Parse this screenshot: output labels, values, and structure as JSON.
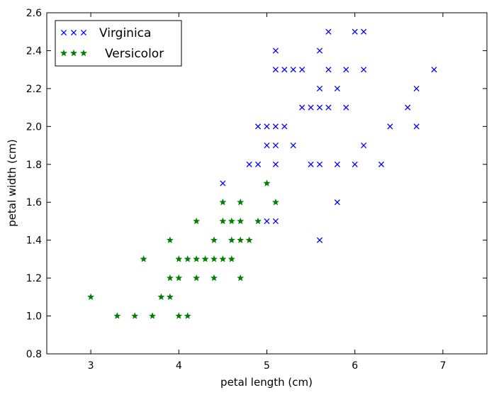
{
  "chart_data": {
    "type": "scatter",
    "xlabel": "petal length (cm)",
    "ylabel": "petal width (cm)",
    "xlim": [
      2.5,
      7.5
    ],
    "ylim": [
      0.8,
      2.6
    ],
    "x_ticks": [
      "3",
      "4",
      "5",
      "6",
      "7"
    ],
    "y_ticks": [
      "0.8",
      "1.0",
      "1.2",
      "1.4",
      "1.6",
      "1.8",
      "2.0",
      "2.2",
      "2.4",
      "2.6"
    ],
    "grid": false,
    "legend_position": "top-left",
    "series": [
      {
        "name": "Virginica",
        "marker": "x",
        "color": "#0000ff",
        "points": [
          [
            5.7,
            2.5
          ],
          [
            6.0,
            2.5
          ],
          [
            6.1,
            2.5
          ],
          [
            5.1,
            2.4
          ],
          [
            5.6,
            2.4
          ],
          [
            5.1,
            2.3
          ],
          [
            5.2,
            2.3
          ],
          [
            5.3,
            2.3
          ],
          [
            5.4,
            2.3
          ],
          [
            5.7,
            2.3
          ],
          [
            5.9,
            2.3
          ],
          [
            6.1,
            2.3
          ],
          [
            6.9,
            2.3
          ],
          [
            5.6,
            2.2
          ],
          [
            5.8,
            2.2
          ],
          [
            6.7,
            2.2
          ],
          [
            5.4,
            2.1
          ],
          [
            5.5,
            2.1
          ],
          [
            5.6,
            2.1
          ],
          [
            5.7,
            2.1
          ],
          [
            5.9,
            2.1
          ],
          [
            6.6,
            2.1
          ],
          [
            4.9,
            2.0
          ],
          [
            5.0,
            2.0
          ],
          [
            5.1,
            2.0
          ],
          [
            5.2,
            2.0
          ],
          [
            6.4,
            2.0
          ],
          [
            6.7,
            2.0
          ],
          [
            5.0,
            1.9
          ],
          [
            5.1,
            1.9
          ],
          [
            5.3,
            1.9
          ],
          [
            6.1,
            1.9
          ],
          [
            4.8,
            1.8
          ],
          [
            4.9,
            1.8
          ],
          [
            5.1,
            1.8
          ],
          [
            5.5,
            1.8
          ],
          [
            5.6,
            1.8
          ],
          [
            5.8,
            1.8
          ],
          [
            6.0,
            1.8
          ],
          [
            6.3,
            1.8
          ],
          [
            4.5,
            1.7
          ],
          [
            5.8,
            1.6
          ],
          [
            5.0,
            1.5
          ],
          [
            5.1,
            1.5
          ],
          [
            5.6,
            1.4
          ]
        ]
      },
      {
        "name": "Versicolor",
        "marker": "star",
        "color": "#008000",
        "points": [
          [
            5.0,
            1.7
          ],
          [
            4.5,
            1.6
          ],
          [
            4.7,
            1.6
          ],
          [
            5.1,
            1.6
          ],
          [
            4.2,
            1.5
          ],
          [
            4.5,
            1.5
          ],
          [
            4.6,
            1.5
          ],
          [
            4.7,
            1.5
          ],
          [
            4.9,
            1.5
          ],
          [
            3.9,
            1.4
          ],
          [
            4.4,
            1.4
          ],
          [
            4.6,
            1.4
          ],
          [
            4.7,
            1.4
          ],
          [
            4.8,
            1.4
          ],
          [
            3.6,
            1.3
          ],
          [
            4.0,
            1.3
          ],
          [
            4.1,
            1.3
          ],
          [
            4.2,
            1.3
          ],
          [
            4.3,
            1.3
          ],
          [
            4.4,
            1.3
          ],
          [
            4.5,
            1.3
          ],
          [
            4.6,
            1.3
          ],
          [
            3.9,
            1.2
          ],
          [
            4.0,
            1.2
          ],
          [
            4.2,
            1.2
          ],
          [
            4.4,
            1.2
          ],
          [
            4.7,
            1.2
          ],
          [
            3.0,
            1.1
          ],
          [
            3.8,
            1.1
          ],
          [
            3.9,
            1.1
          ],
          [
            3.3,
            1.0
          ],
          [
            3.5,
            1.0
          ],
          [
            3.7,
            1.0
          ],
          [
            4.0,
            1.0
          ],
          [
            4.1,
            1.0
          ]
        ]
      }
    ]
  }
}
